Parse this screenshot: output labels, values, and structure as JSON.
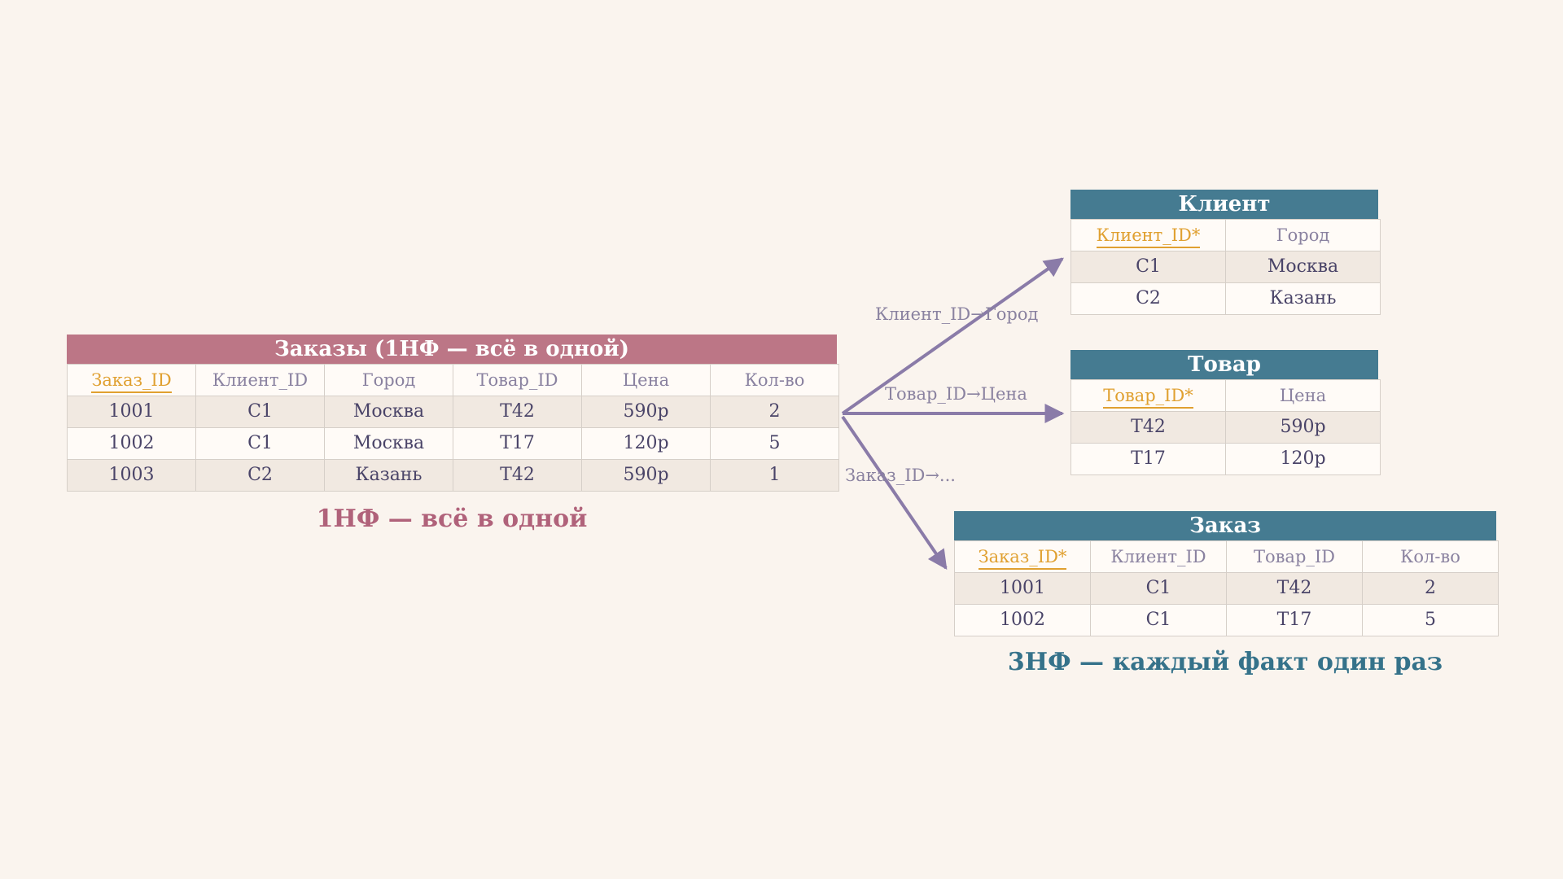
{
  "colors": {
    "background": "#faf4ee",
    "source_header": "#bc7686",
    "target_header": "#457b91",
    "key_text": "#e0a030",
    "arrow": "#8a7ba8",
    "caption_source": "#b0627a",
    "caption_target": "#35728a"
  },
  "source": {
    "title": "Заказы (1НФ — всё в одной)",
    "columns": [
      "Заказ_ID",
      "Клиент_ID",
      "Город",
      "Товар_ID",
      "Цена",
      "Кол-во"
    ],
    "key_columns": [
      0
    ],
    "rows": [
      [
        "1001",
        "C1",
        "Москва",
        "T42",
        "590р",
        "2"
      ],
      [
        "1002",
        "C1",
        "Москва",
        "T17",
        "120р",
        "5"
      ],
      [
        "1003",
        "C2",
        "Казань",
        "T42",
        "590р",
        "1"
      ]
    ],
    "caption": "1НФ — всё в одной"
  },
  "client": {
    "title": "Клиент",
    "columns": [
      "Клиент_ID*",
      "Город"
    ],
    "key_columns": [
      0
    ],
    "rows": [
      [
        "C1",
        "Москва"
      ],
      [
        "C2",
        "Казань"
      ]
    ]
  },
  "product": {
    "title": "Товар",
    "columns": [
      "Товар_ID*",
      "Цена"
    ],
    "key_columns": [
      0
    ],
    "rows": [
      [
        "T42",
        "590р"
      ],
      [
        "T17",
        "120р"
      ]
    ]
  },
  "order": {
    "title": "Заказ",
    "columns": [
      "Заказ_ID*",
      "Клиент_ID",
      "Товар_ID",
      "Кол-во"
    ],
    "key_columns": [
      0
    ],
    "rows": [
      [
        "1001",
        "C1",
        "T42",
        "2"
      ],
      [
        "1002",
        "C1",
        "T17",
        "5"
      ]
    ],
    "caption": "3НФ — каждый факт один раз"
  },
  "arrows": {
    "client_label": "Клиент_ID→Город",
    "product_label": "Товар_ID→Цена",
    "order_label": "Заказ_ID→..."
  }
}
